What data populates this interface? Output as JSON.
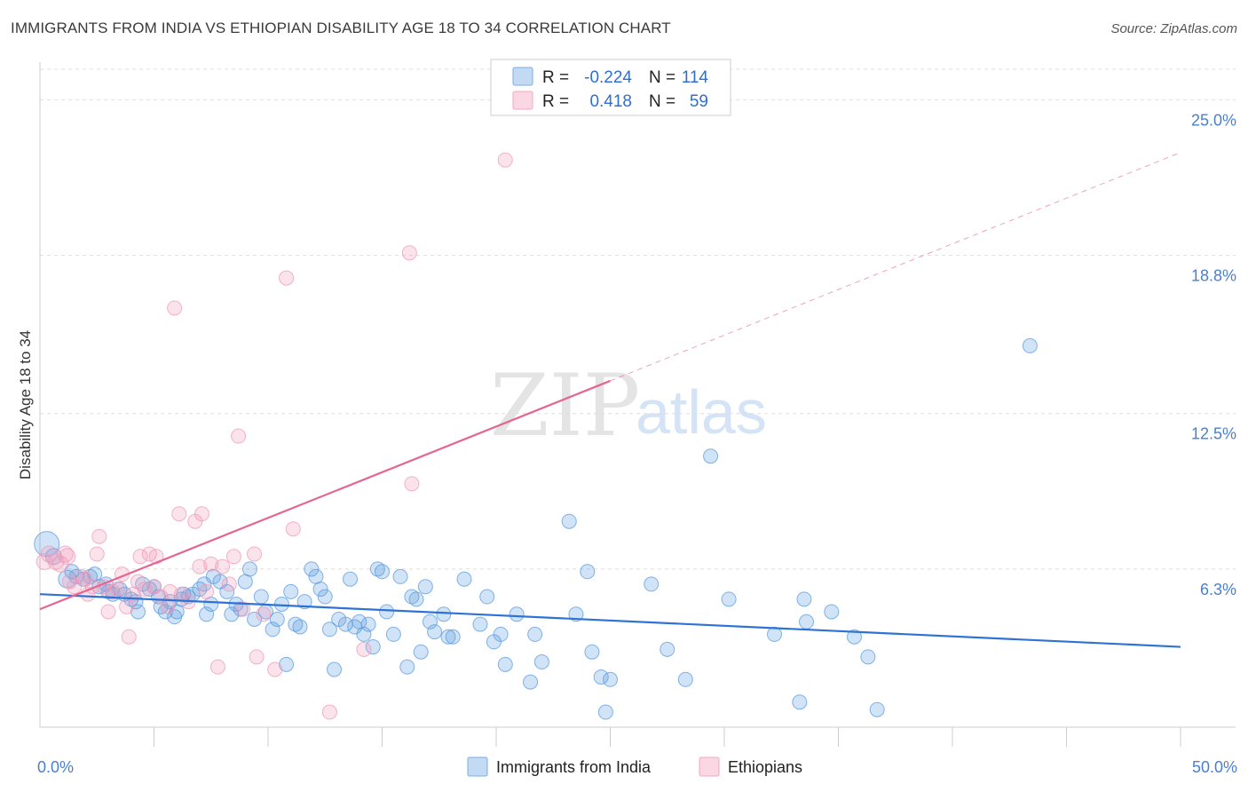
{
  "header": {
    "title": "IMMIGRANTS FROM INDIA VS ETHIOPIAN DISABILITY AGE 18 TO 34 CORRELATION CHART",
    "source": "Source: ZipAtlas.com"
  },
  "watermark": {
    "zip": "ZIP",
    "atlas": "atlas"
  },
  "legend": {
    "rows": [
      {
        "r_label": "R =",
        "r_value": "-0.224",
        "n_label": "N =",
        "n_value": "114",
        "color": "#7aaee8"
      },
      {
        "r_label": "R =",
        "r_value": "0.418",
        "n_label": "N =",
        "n_value": "59",
        "color": "#f4a7bf"
      }
    ]
  },
  "bottom_legend": {
    "items": [
      {
        "label": "Immigrants from India",
        "color": "#7aaee8"
      },
      {
        "label": "Ethiopians",
        "color": "#f4a7bf"
      }
    ]
  },
  "chart_data": {
    "type": "scatter",
    "title": "IMMIGRANTS FROM INDIA VS ETHIOPIAN DISABILITY AGE 18 TO 34 CORRELATION CHART",
    "ylabel": "Disability Age 18 to 34",
    "xlabel": "",
    "xlim": [
      0,
      50
    ],
    "ylim": [
      0,
      26.5
    ],
    "x_tick_labels": [
      "0.0%",
      "50.0%"
    ],
    "y_ticks": [
      6.3,
      12.5,
      18.8,
      25.0
    ],
    "y_tick_labels": [
      "6.3%",
      "12.5%",
      "18.8%",
      "25.0%"
    ],
    "grid": "horizontal dashed",
    "colors": {
      "india": "#5b9be0",
      "ethiopians": "#f09ab8",
      "india_line": "#2f72d6",
      "ethiopians_line": "#e5658f"
    },
    "series": [
      {
        "name": "Immigrants from India",
        "trend": {
          "x": [
            0,
            50
          ],
          "y": [
            5.3,
            3.2
          ]
        },
        "points": [
          [
            0.3,
            7.3,
            14
          ],
          [
            0.6,
            6.8,
            9
          ],
          [
            1.2,
            5.9,
            10
          ],
          [
            1.4,
            6.2,
            8
          ],
          [
            1.6,
            6.0,
            8
          ],
          [
            1.9,
            5.9,
            8
          ],
          [
            2.2,
            6.0,
            8
          ],
          [
            2.4,
            6.1,
            8
          ],
          [
            2.6,
            5.6,
            8
          ],
          [
            2.9,
            5.7,
            8
          ],
          [
            3.0,
            5.4,
            8
          ],
          [
            3.2,
            5.3,
            8
          ],
          [
            3.5,
            5.5,
            8
          ],
          [
            3.7,
            5.3,
            8
          ],
          [
            4.0,
            5.1,
            8
          ],
          [
            4.2,
            5.0,
            8
          ],
          [
            4.3,
            4.6,
            8
          ],
          [
            4.5,
            5.7,
            8
          ],
          [
            4.8,
            5.5,
            8
          ],
          [
            5.0,
            5.6,
            8
          ],
          [
            5.2,
            5.2,
            8
          ],
          [
            5.3,
            4.8,
            8
          ],
          [
            5.5,
            4.6,
            8
          ],
          [
            5.7,
            5.0,
            8
          ],
          [
            5.9,
            4.4,
            8
          ],
          [
            6.0,
            4.6,
            8
          ],
          [
            6.2,
            5.1,
            8
          ],
          [
            6.3,
            5.3,
            8
          ],
          [
            6.5,
            5.2,
            8
          ],
          [
            6.7,
            5.3,
            8
          ],
          [
            7.0,
            5.5,
            8
          ],
          [
            7.2,
            5.7,
            8
          ],
          [
            7.3,
            4.5,
            8
          ],
          [
            7.5,
            4.9,
            8
          ],
          [
            7.6,
            6.0,
            8
          ],
          [
            7.9,
            5.8,
            8
          ],
          [
            8.2,
            5.4,
            8
          ],
          [
            8.4,
            4.5,
            8
          ],
          [
            8.6,
            4.9,
            8
          ],
          [
            8.8,
            4.7,
            8
          ],
          [
            9.0,
            5.8,
            8
          ],
          [
            9.2,
            6.3,
            8
          ],
          [
            9.4,
            4.3,
            8
          ],
          [
            9.7,
            5.2,
            8
          ],
          [
            9.9,
            4.6,
            8
          ],
          [
            10.2,
            3.9,
            8
          ],
          [
            10.4,
            4.3,
            8
          ],
          [
            10.6,
            4.9,
            8
          ],
          [
            10.8,
            2.5,
            8
          ],
          [
            11.0,
            5.4,
            8
          ],
          [
            11.2,
            4.1,
            8
          ],
          [
            11.4,
            4.0,
            8
          ],
          [
            11.6,
            5.0,
            8
          ],
          [
            11.9,
            6.3,
            8
          ],
          [
            12.1,
            6.0,
            8
          ],
          [
            12.3,
            5.5,
            8
          ],
          [
            12.5,
            5.2,
            8
          ],
          [
            12.7,
            3.9,
            8
          ],
          [
            12.9,
            2.3,
            8
          ],
          [
            13.1,
            4.3,
            8
          ],
          [
            13.4,
            4.1,
            8
          ],
          [
            13.6,
            5.9,
            8
          ],
          [
            13.8,
            4.0,
            8
          ],
          [
            14.0,
            4.2,
            8
          ],
          [
            14.2,
            3.7,
            8
          ],
          [
            14.4,
            4.1,
            8
          ],
          [
            14.6,
            3.2,
            8
          ],
          [
            14.8,
            6.3,
            8
          ],
          [
            15.0,
            6.2,
            8
          ],
          [
            15.2,
            4.6,
            8
          ],
          [
            15.5,
            3.7,
            8
          ],
          [
            15.8,
            6.0,
            8
          ],
          [
            16.1,
            2.4,
            8
          ],
          [
            16.3,
            5.2,
            8
          ],
          [
            16.5,
            5.1,
            8
          ],
          [
            16.7,
            3.0,
            8
          ],
          [
            16.9,
            5.6,
            8
          ],
          [
            17.1,
            4.2,
            8
          ],
          [
            17.3,
            3.8,
            8
          ],
          [
            17.7,
            4.5,
            8
          ],
          [
            17.9,
            3.6,
            8
          ],
          [
            18.1,
            3.6,
            8
          ],
          [
            18.6,
            5.9,
            8
          ],
          [
            19.3,
            4.1,
            8
          ],
          [
            19.6,
            5.2,
            8
          ],
          [
            19.9,
            3.4,
            8
          ],
          [
            20.2,
            3.7,
            8
          ],
          [
            20.4,
            2.5,
            8
          ],
          [
            20.9,
            4.5,
            8
          ],
          [
            21.5,
            1.8,
            8
          ],
          [
            21.7,
            3.7,
            8
          ],
          [
            22.0,
            2.6,
            8
          ],
          [
            23.2,
            8.2,
            8
          ],
          [
            23.5,
            4.5,
            8
          ],
          [
            24.0,
            6.2,
            8
          ],
          [
            24.2,
            3.0,
            8
          ],
          [
            24.6,
            2.0,
            8
          ],
          [
            24.8,
            0.6,
            8
          ],
          [
            25.0,
            1.9,
            8
          ],
          [
            26.8,
            5.7,
            8
          ],
          [
            27.5,
            3.1,
            8
          ],
          [
            28.3,
            1.9,
            8
          ],
          [
            29.4,
            10.8,
            8
          ],
          [
            30.2,
            5.1,
            8
          ],
          [
            32.2,
            3.7,
            8
          ],
          [
            33.3,
            1.0,
            8
          ],
          [
            33.5,
            5.1,
            8
          ],
          [
            33.6,
            4.2,
            8
          ],
          [
            34.7,
            4.6,
            8
          ],
          [
            35.7,
            3.6,
            8
          ],
          [
            36.3,
            2.8,
            8
          ],
          [
            36.7,
            0.7,
            8
          ],
          [
            43.4,
            15.2,
            8
          ]
        ]
      },
      {
        "name": "Ethiopians",
        "trend": {
          "x": [
            0,
            25
          ],
          "y": [
            4.7,
            13.8
          ]
        },
        "trend_extended": {
          "x": [
            25,
            50
          ],
          "y": [
            13.8,
            22.9
          ]
        },
        "points": [
          [
            0.2,
            6.6,
            9
          ],
          [
            0.4,
            6.9,
            9
          ],
          [
            0.7,
            6.6,
            9
          ],
          [
            0.9,
            6.5,
            9
          ],
          [
            1.1,
            6.9,
            9
          ],
          [
            1.2,
            6.8,
            9
          ],
          [
            1.3,
            5.8,
            8
          ],
          [
            1.5,
            5.6,
            8
          ],
          [
            1.8,
            6.0,
            8
          ],
          [
            2.0,
            5.9,
            8
          ],
          [
            2.1,
            5.3,
            8
          ],
          [
            2.3,
            5.6,
            8
          ],
          [
            2.5,
            6.9,
            8
          ],
          [
            2.6,
            7.6,
            8
          ],
          [
            2.8,
            5.6,
            8
          ],
          [
            3.0,
            4.6,
            8
          ],
          [
            3.2,
            5.4,
            8
          ],
          [
            3.4,
            5.5,
            8
          ],
          [
            3.6,
            6.1,
            8
          ],
          [
            3.8,
            4.8,
            8
          ],
          [
            3.9,
            3.6,
            8
          ],
          [
            4.1,
            5.3,
            8
          ],
          [
            4.3,
            5.8,
            8
          ],
          [
            4.4,
            6.8,
            8
          ],
          [
            4.6,
            5.5,
            8
          ],
          [
            4.8,
            6.9,
            8
          ],
          [
            5.0,
            5.6,
            8
          ],
          [
            5.1,
            6.8,
            8
          ],
          [
            5.3,
            5.2,
            8
          ],
          [
            5.6,
            4.8,
            8
          ],
          [
            5.7,
            5.4,
            8
          ],
          [
            5.9,
            16.7,
            8
          ],
          [
            6.1,
            8.5,
            8
          ],
          [
            6.2,
            5.3,
            8
          ],
          [
            6.5,
            5.0,
            8
          ],
          [
            6.8,
            8.2,
            8
          ],
          [
            7.0,
            6.4,
            8
          ],
          [
            7.1,
            8.5,
            8
          ],
          [
            7.3,
            5.4,
            8
          ],
          [
            7.5,
            6.5,
            8
          ],
          [
            7.8,
            2.4,
            8
          ],
          [
            8.0,
            6.4,
            8
          ],
          [
            8.3,
            5.7,
            8
          ],
          [
            8.5,
            6.8,
            8
          ],
          [
            8.7,
            11.6,
            8
          ],
          [
            8.9,
            4.7,
            8
          ],
          [
            9.4,
            6.9,
            8
          ],
          [
            9.5,
            2.8,
            8
          ],
          [
            9.8,
            4.5,
            8
          ],
          [
            10.3,
            2.3,
            8
          ],
          [
            10.8,
            17.9,
            8
          ],
          [
            11.1,
            7.9,
            8
          ],
          [
            12.7,
            0.6,
            8
          ],
          [
            14.2,
            3.1,
            8
          ],
          [
            16.2,
            18.9,
            8
          ],
          [
            16.3,
            9.7,
            8
          ],
          [
            20.4,
            22.6,
            8
          ]
        ]
      }
    ]
  }
}
